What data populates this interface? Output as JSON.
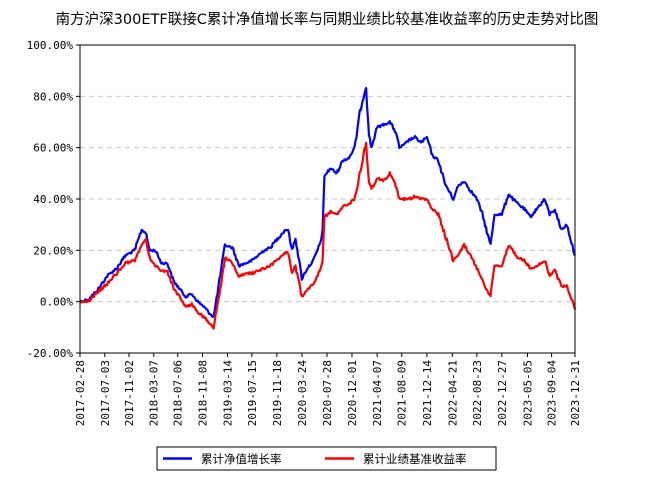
{
  "chart_data": {
    "type": "line",
    "title": "南方沪深300ETF联接C累计净值增长率与同期业绩比较基准收益率的历史走势对比图",
    "xlabel": "",
    "ylabel": "",
    "ylim": [
      -0.2,
      1.0
    ],
    "yticks": [
      -0.2,
      0.0,
      0.2,
      0.4,
      0.6,
      0.8,
      1.0
    ],
    "ytick_labels": [
      "-20.00%",
      "0.00%",
      "20.00%",
      "40.00%",
      "60.00%",
      "80.00%",
      "100.00%"
    ],
    "xlim": [
      "2017-02-28",
      "2023-12-31"
    ],
    "xtick_labels": [
      "2017-02-28",
      "2017-07-03",
      "2017-11-02",
      "2018-03-07",
      "2018-07-06",
      "2018-11-08",
      "2019-03-14",
      "2019-07-15",
      "2019-11-18",
      "2020-03-24",
      "2020-07-28",
      "2020-12-01",
      "2021-04-07",
      "2021-08-09",
      "2021-12-14",
      "2022-04-21",
      "2022-08-23",
      "2022-12-27",
      "2023-05-05",
      "2023-09-04",
      "2023-12-31"
    ],
    "grid": "horizontal-dashed",
    "legend_position": "bottom-center",
    "series": [
      {
        "name": "累计净值增长率",
        "color": "#0000ff",
        "x": [
          "2017-02-28",
          "2017-04-15",
          "2017-06-01",
          "2017-07-15",
          "2017-09-01",
          "2017-10-15",
          "2017-12-01",
          "2018-01-05",
          "2018-01-25",
          "2018-02-15",
          "2018-03-15",
          "2018-04-15",
          "2018-05-15",
          "2018-06-15",
          "2018-07-15",
          "2018-08-15",
          "2018-09-15",
          "2018-10-15",
          "2018-11-15",
          "2018-12-20",
          "2019-01-03",
          "2019-02-01",
          "2019-03-01",
          "2019-04-08",
          "2019-05-10",
          "2019-06-15",
          "2019-07-15",
          "2019-08-15",
          "2019-09-15",
          "2019-10-15",
          "2019-11-15",
          "2019-12-31",
          "2020-01-14",
          "2020-02-03",
          "2020-02-20",
          "2020-03-23",
          "2020-04-20",
          "2020-05-20",
          "2020-06-20",
          "2020-07-06",
          "2020-07-15",
          "2020-08-15",
          "2020-09-15",
          "2020-10-15",
          "2020-11-15",
          "2020-12-15",
          "2021-01-10",
          "2021-02-10",
          "2021-02-25",
          "2021-03-09",
          "2021-04-07",
          "2021-05-10",
          "2021-06-10",
          "2021-07-10",
          "2021-07-28",
          "2021-08-20",
          "2021-09-15",
          "2021-10-15",
          "2021-11-15",
          "2021-12-14",
          "2022-01-10",
          "2022-02-10",
          "2022-03-15",
          "2022-04-26",
          "2022-05-20",
          "2022-06-20",
          "2022-07-15",
          "2022-08-23",
          "2022-09-20",
          "2022-10-31",
          "2022-11-20",
          "2022-12-27",
          "2023-01-30",
          "2023-02-20",
          "2023-03-20",
          "2023-04-20",
          "2023-05-20",
          "2023-06-20",
          "2023-07-31",
          "2023-08-25",
          "2023-09-20",
          "2023-10-23",
          "2023-11-20",
          "2023-12-10",
          "2023-12-31"
        ],
        "values": [
          0.0,
          0.01,
          0.05,
          0.1,
          0.13,
          0.18,
          0.2,
          0.28,
          0.27,
          0.2,
          0.2,
          0.15,
          0.15,
          0.08,
          0.05,
          0.02,
          0.03,
          0.0,
          -0.02,
          -0.05,
          -0.06,
          0.08,
          0.22,
          0.21,
          0.14,
          0.15,
          0.16,
          0.18,
          0.2,
          0.21,
          0.24,
          0.28,
          0.28,
          0.2,
          0.25,
          0.09,
          0.13,
          0.16,
          0.22,
          0.27,
          0.49,
          0.52,
          0.5,
          0.55,
          0.56,
          0.6,
          0.74,
          0.84,
          0.65,
          0.6,
          0.68,
          0.69,
          0.7,
          0.66,
          0.6,
          0.61,
          0.63,
          0.64,
          0.62,
          0.64,
          0.57,
          0.55,
          0.46,
          0.4,
          0.45,
          0.47,
          0.44,
          0.4,
          0.34,
          0.22,
          0.34,
          0.34,
          0.42,
          0.4,
          0.38,
          0.36,
          0.33,
          0.36,
          0.4,
          0.34,
          0.36,
          0.28,
          0.3,
          0.24,
          0.18
        ]
      },
      {
        "name": "累计业绩基准收益率",
        "color": "#ff0000",
        "x": [
          "2017-02-28",
          "2017-04-15",
          "2017-06-01",
          "2017-07-15",
          "2017-09-01",
          "2017-10-15",
          "2017-12-01",
          "2018-01-05",
          "2018-01-25",
          "2018-02-15",
          "2018-03-15",
          "2018-04-15",
          "2018-05-15",
          "2018-06-15",
          "2018-07-15",
          "2018-08-15",
          "2018-09-15",
          "2018-10-15",
          "2018-11-15",
          "2018-12-20",
          "2019-01-03",
          "2019-02-01",
          "2019-03-01",
          "2019-04-08",
          "2019-05-10",
          "2019-06-15",
          "2019-07-15",
          "2019-08-15",
          "2019-09-15",
          "2019-10-15",
          "2019-11-15",
          "2019-12-31",
          "2020-01-14",
          "2020-02-03",
          "2020-02-20",
          "2020-03-23",
          "2020-04-20",
          "2020-05-20",
          "2020-06-20",
          "2020-07-06",
          "2020-07-15",
          "2020-08-15",
          "2020-09-15",
          "2020-10-15",
          "2020-11-15",
          "2020-12-15",
          "2021-01-10",
          "2021-02-10",
          "2021-02-25",
          "2021-03-09",
          "2021-04-07",
          "2021-05-10",
          "2021-06-10",
          "2021-07-10",
          "2021-07-28",
          "2021-08-20",
          "2021-09-15",
          "2021-10-15",
          "2021-11-15",
          "2021-12-14",
          "2022-01-10",
          "2022-02-10",
          "2022-03-15",
          "2022-04-26",
          "2022-05-20",
          "2022-06-20",
          "2022-07-15",
          "2022-08-23",
          "2022-09-20",
          "2022-10-31",
          "2022-11-20",
          "2022-12-27",
          "2023-01-30",
          "2023-02-20",
          "2023-03-20",
          "2023-04-20",
          "2023-05-20",
          "2023-06-20",
          "2023-07-31",
          "2023-08-25",
          "2023-09-20",
          "2023-10-23",
          "2023-11-20",
          "2023-12-10",
          "2023-12-31"
        ],
        "values": [
          0.0,
          0.0,
          0.04,
          0.07,
          0.11,
          0.15,
          0.16,
          0.22,
          0.24,
          0.17,
          0.14,
          0.12,
          0.12,
          0.05,
          0.02,
          -0.02,
          -0.01,
          -0.04,
          -0.06,
          -0.09,
          -0.1,
          0.03,
          0.17,
          0.15,
          0.1,
          0.11,
          0.11,
          0.12,
          0.13,
          0.14,
          0.16,
          0.19,
          0.19,
          0.11,
          0.14,
          0.02,
          0.05,
          0.07,
          0.12,
          0.16,
          0.33,
          0.35,
          0.34,
          0.37,
          0.38,
          0.4,
          0.5,
          0.62,
          0.47,
          0.44,
          0.48,
          0.47,
          0.5,
          0.45,
          0.4,
          0.4,
          0.4,
          0.41,
          0.4,
          0.4,
          0.36,
          0.34,
          0.26,
          0.16,
          0.18,
          0.22,
          0.19,
          0.13,
          0.08,
          0.02,
          0.14,
          0.14,
          0.22,
          0.2,
          0.17,
          0.16,
          0.13,
          0.14,
          0.16,
          0.1,
          0.12,
          0.06,
          0.06,
          0.02,
          -0.03
        ]
      }
    ]
  }
}
